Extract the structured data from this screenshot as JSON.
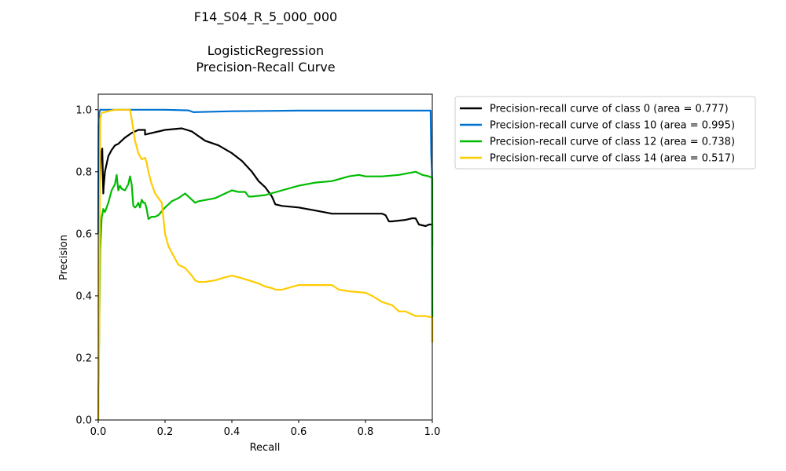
{
  "chart_data": {
    "type": "line",
    "title_lines": [
      "F14_S04_R_5_000_000",
      "",
      "LogisticRegression",
      "Precision-Recall Curve"
    ],
    "xlabel": "Recall",
    "ylabel": "Precision",
    "xlim": [
      0.0,
      1.0
    ],
    "ylim": [
      0.0,
      1.05
    ],
    "xticks": [
      0.0,
      0.2,
      0.4,
      0.6,
      0.8,
      1.0
    ],
    "xtick_labels": [
      "0.0",
      "0.2",
      "0.4",
      "0.6",
      "0.8",
      "1.0"
    ],
    "yticks": [
      0.0,
      0.2,
      0.4,
      0.6,
      0.8,
      1.0
    ],
    "ytick_labels": [
      "0.0",
      "0.2",
      "0.4",
      "0.6",
      "0.8",
      "1.0"
    ],
    "grid": false,
    "legend_position": "outside-top-right",
    "series": [
      {
        "name": "Precision-recall curve of class 0 (area = 0.777)",
        "color": "#000000",
        "x": [
          0.0,
          0.003,
          0.008,
          0.012,
          0.015,
          0.016,
          0.02,
          0.03,
          0.04,
          0.05,
          0.06,
          0.08,
          0.1,
          0.12,
          0.14,
          0.14,
          0.16,
          0.2,
          0.25,
          0.28,
          0.32,
          0.36,
          0.4,
          0.43,
          0.46,
          0.48,
          0.5,
          0.52,
          0.53,
          0.55,
          0.6,
          0.65,
          0.7,
          0.75,
          0.8,
          0.85,
          0.86,
          0.87,
          0.88,
          0.92,
          0.94,
          0.95,
          0.96,
          0.98,
          0.99,
          1.0,
          1.0
        ],
        "y": [
          0.7,
          0.72,
          0.85,
          0.875,
          0.73,
          0.75,
          0.8,
          0.85,
          0.87,
          0.885,
          0.89,
          0.91,
          0.925,
          0.935,
          0.935,
          0.92,
          0.925,
          0.935,
          0.94,
          0.93,
          0.9,
          0.885,
          0.86,
          0.835,
          0.8,
          0.77,
          0.75,
          0.72,
          0.695,
          0.69,
          0.685,
          0.675,
          0.665,
          0.665,
          0.665,
          0.665,
          0.66,
          0.64,
          0.64,
          0.645,
          0.65,
          0.65,
          0.63,
          0.625,
          0.63,
          0.63,
          0.56
        ]
      },
      {
        "name": "Precision-recall curve of class 10 (area = 0.995)",
        "color": "#0072d3",
        "x": [
          0.0,
          0.001,
          0.003,
          0.006,
          0.01,
          0.05,
          0.1,
          0.2,
          0.27,
          0.285,
          0.4,
          0.5,
          0.6,
          0.7,
          0.8,
          0.9,
          0.995,
          0.997,
          0.999,
          1.0
        ],
        "y": [
          0.6,
          0.95,
          0.99,
          1.0,
          1.0,
          1.0,
          1.0,
          1.0,
          0.998,
          0.992,
          0.995,
          0.996,
          0.997,
          0.997,
          0.997,
          0.997,
          0.997,
          0.85,
          0.8,
          0.33
        ]
      },
      {
        "name": "Precision-recall curve of class 12 (area = 0.738)",
        "color": "#00bb00",
        "x": [
          0.0,
          0.003,
          0.006,
          0.01,
          0.015,
          0.02,
          0.03,
          0.04,
          0.05,
          0.055,
          0.06,
          0.065,
          0.07,
          0.08,
          0.09,
          0.095,
          0.1,
          0.105,
          0.11,
          0.115,
          0.12,
          0.125,
          0.13,
          0.135,
          0.14,
          0.145,
          0.15,
          0.16,
          0.17,
          0.18,
          0.2,
          0.22,
          0.24,
          0.26,
          0.27,
          0.29,
          0.3,
          0.35,
          0.4,
          0.42,
          0.44,
          0.45,
          0.46,
          0.5,
          0.55,
          0.6,
          0.65,
          0.7,
          0.75,
          0.78,
          0.8,
          0.82,
          0.85,
          0.9,
          0.95,
          0.97,
          0.99,
          1.0,
          1.0
        ],
        "y": [
          0.0,
          0.3,
          0.55,
          0.65,
          0.68,
          0.67,
          0.7,
          0.74,
          0.76,
          0.79,
          0.74,
          0.755,
          0.745,
          0.74,
          0.76,
          0.785,
          0.76,
          0.69,
          0.685,
          0.69,
          0.7,
          0.685,
          0.71,
          0.7,
          0.7,
          0.68,
          0.648,
          0.655,
          0.655,
          0.66,
          0.685,
          0.705,
          0.715,
          0.73,
          0.72,
          0.7,
          0.705,
          0.715,
          0.74,
          0.735,
          0.735,
          0.72,
          0.72,
          0.725,
          0.74,
          0.755,
          0.765,
          0.77,
          0.785,
          0.79,
          0.785,
          0.785,
          0.785,
          0.79,
          0.8,
          0.79,
          0.785,
          0.78,
          0.25
        ]
      },
      {
        "name": "Precision-recall curve of class 14 (area = 0.517)",
        "color": "#ffcc00",
        "x": [
          0.0,
          0.003,
          0.006,
          0.01,
          0.03,
          0.05,
          0.09,
          0.095,
          0.1,
          0.11,
          0.12,
          0.13,
          0.14,
          0.145,
          0.15,
          0.16,
          0.17,
          0.19,
          0.2,
          0.21,
          0.22,
          0.24,
          0.26,
          0.28,
          0.29,
          0.3,
          0.32,
          0.35,
          0.38,
          0.4,
          0.42,
          0.45,
          0.48,
          0.5,
          0.52,
          0.53,
          0.55,
          0.6,
          0.65,
          0.7,
          0.72,
          0.75,
          0.8,
          0.82,
          0.85,
          0.88,
          0.89,
          0.9,
          0.91,
          0.92,
          0.95,
          0.96,
          0.98,
          1.0,
          1.0
        ],
        "y": [
          0.0,
          0.3,
          0.97,
          0.99,
          0.995,
          1.0,
          1.0,
          1.0,
          0.97,
          0.9,
          0.86,
          0.84,
          0.845,
          0.83,
          0.8,
          0.76,
          0.73,
          0.7,
          0.6,
          0.56,
          0.54,
          0.5,
          0.49,
          0.465,
          0.45,
          0.445,
          0.445,
          0.45,
          0.46,
          0.465,
          0.46,
          0.45,
          0.44,
          0.43,
          0.425,
          0.42,
          0.42,
          0.435,
          0.435,
          0.435,
          0.42,
          0.415,
          0.41,
          0.4,
          0.38,
          0.37,
          0.36,
          0.35,
          0.35,
          0.35,
          0.335,
          0.335,
          0.335,
          0.33,
          0.25
        ]
      }
    ]
  }
}
